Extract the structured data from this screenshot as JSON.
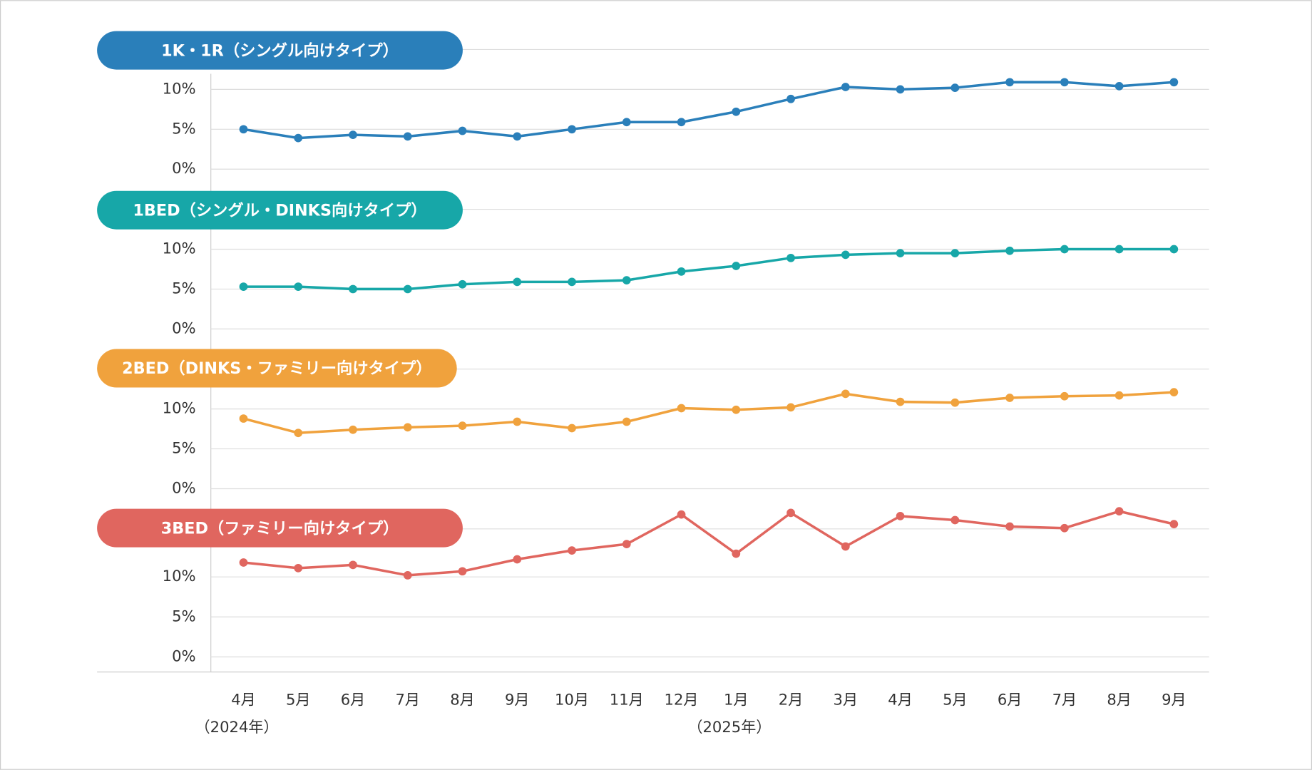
{
  "chart_data": [
    {
      "type": "line",
      "title": "1K・1R（シングル向けタイプ）",
      "color": "#2a7fba",
      "values": [
        5.0,
        3.9,
        4.3,
        4.1,
        4.8,
        4.1,
        5.0,
        5.9,
        5.9,
        7.2,
        8.8,
        10.3,
        10.0,
        10.2,
        10.9,
        10.9,
        10.4,
        10.9
      ],
      "ylim": [
        0,
        15
      ],
      "yticks": [
        {
          "value": 0,
          "label": "0%"
        },
        {
          "value": 5,
          "label": "5%"
        },
        {
          "value": 10,
          "label": "10%"
        }
      ],
      "grid": true
    },
    {
      "type": "line",
      "title": "1BED（シングル・DINKS向けタイプ）",
      "color": "#17a7a8",
      "values": [
        5.3,
        5.3,
        5.0,
        5.0,
        5.6,
        5.9,
        5.9,
        6.1,
        7.2,
        7.9,
        8.9,
        9.3,
        9.5,
        9.5,
        9.8,
        10.0,
        10.0,
        10.0
      ],
      "ylim": [
        0,
        15
      ],
      "yticks": [
        {
          "value": 0,
          "label": "0%"
        },
        {
          "value": 5,
          "label": "5%"
        },
        {
          "value": 10,
          "label": "10%"
        }
      ],
      "grid": true
    },
    {
      "type": "line",
      "title": "2BED（DINKS・ファミリー向けタイプ）",
      "color": "#f0a23d",
      "values": [
        8.8,
        7.0,
        7.4,
        7.7,
        7.9,
        8.4,
        7.6,
        8.4,
        10.1,
        9.9,
        10.2,
        11.9,
        10.9,
        10.8,
        11.4,
        11.6,
        11.7,
        12.1
      ],
      "ylim": [
        0,
        15
      ],
      "yticks": [
        {
          "value": 0,
          "label": "0%"
        },
        {
          "value": 5,
          "label": "5%"
        },
        {
          "value": 10,
          "label": "10%"
        }
      ],
      "grid": true
    },
    {
      "type": "line",
      "title": "3BED（ファミリー向けタイプ）",
      "color": "#e0665f",
      "categories": [
        "4月",
        "5月",
        "6月",
        "7月",
        "8月",
        "9月",
        "10月",
        "11月",
        "12月",
        "1月",
        "2月",
        "3月",
        "4月",
        "5月",
        "6月",
        "7月",
        "8月",
        "9月"
      ],
      "category_notes": [
        "（2024年）",
        null,
        null,
        null,
        null,
        null,
        null,
        null,
        null,
        "（2025年）",
        null,
        null,
        null,
        null,
        null,
        null,
        null,
        null
      ],
      "values": [
        11.8,
        11.1,
        11.5,
        10.2,
        10.7,
        12.2,
        13.3,
        14.1,
        17.8,
        12.9,
        18.0,
        13.8,
        17.6,
        17.1,
        16.3,
        16.1,
        18.2,
        16.6
      ],
      "ylim": [
        0,
        16
      ],
      "yticks": [
        {
          "value": 0,
          "label": "0%"
        },
        {
          "value": 5,
          "label": "5%"
        },
        {
          "value": 10,
          "label": "10%"
        }
      ],
      "grid": true
    }
  ]
}
